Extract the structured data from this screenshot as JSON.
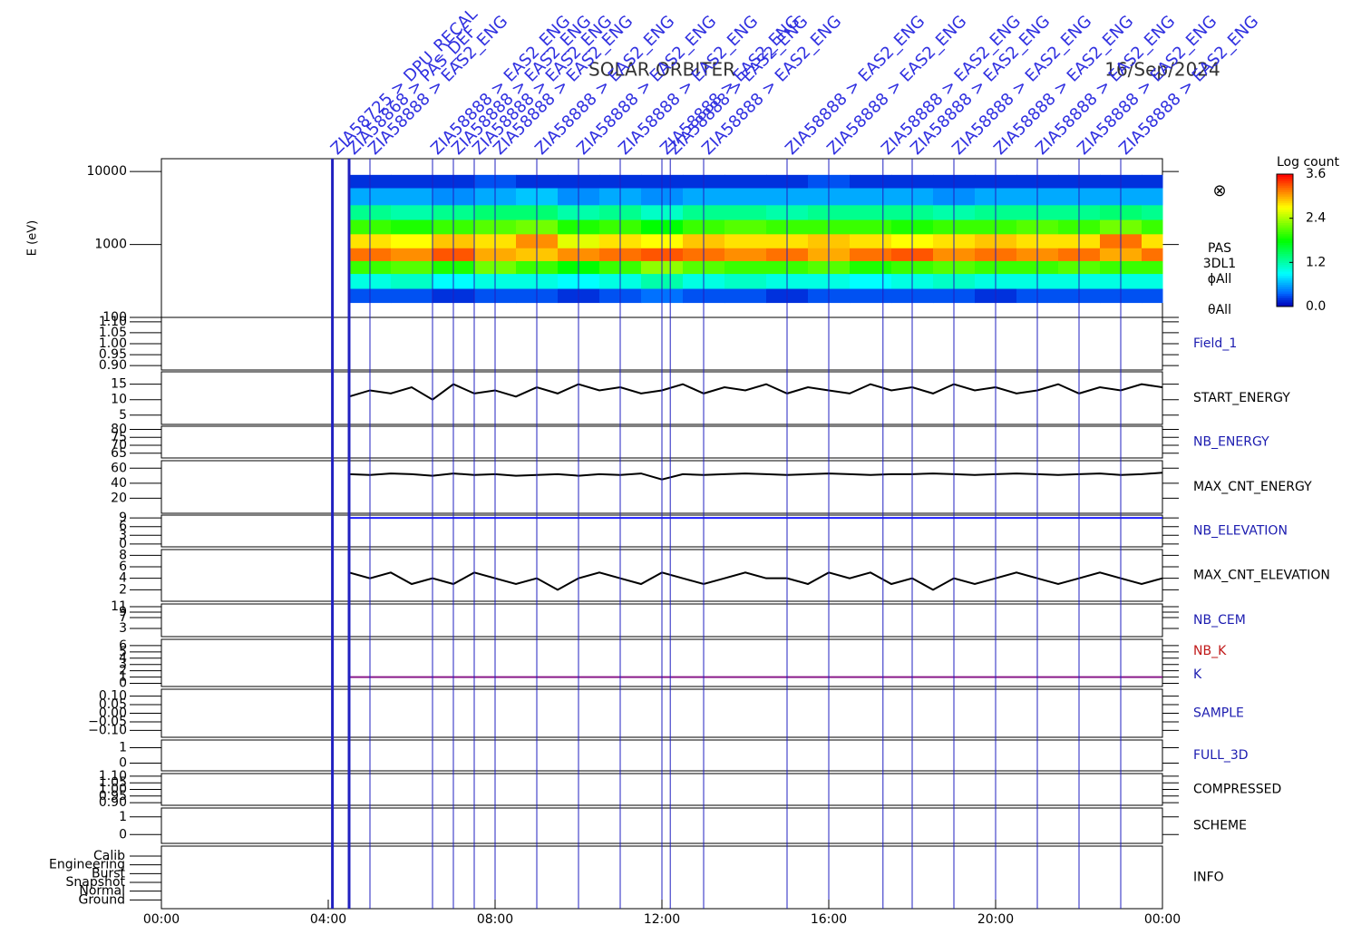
{
  "title": "SOLAR ORBITER",
  "date": "16/Sep/2024",
  "time_axis": {
    "xlim": [
      0,
      24
    ],
    "xticks": [
      {
        "value": 0,
        "label": "00:00"
      },
      {
        "value": 4,
        "label": "04:00"
      },
      {
        "value": 8,
        "label": "08:00"
      },
      {
        "value": 12,
        "label": "12:00"
      },
      {
        "value": 16,
        "label": "16:00"
      },
      {
        "value": 20,
        "label": "20:00"
      },
      {
        "value": 24,
        "label": "00:00"
      }
    ]
  },
  "events": [
    {
      "x": 4.1,
      "label": "ZIA58725 > DPU_RECAL"
    },
    {
      "x": 4.5,
      "label": "ZIA58868 > PAS_DEF"
    },
    {
      "x": 5.0,
      "label": "ZIA58888 > EAS2_ENG"
    },
    {
      "x": 6.5,
      "label": "ZIA58888 > EAS2_ENG"
    },
    {
      "x": 7.0,
      "label": "ZIA58888 > EAS2_ENG"
    },
    {
      "x": 7.5,
      "label": "ZIA58888 > EAS2_ENG"
    },
    {
      "x": 8.0,
      "label": "ZIA58888 > EAS2_ENG"
    },
    {
      "x": 9.0,
      "label": "ZIA58888 > EAS2_ENG"
    },
    {
      "x": 10.0,
      "label": "ZIA58888 > EAS2_ENG"
    },
    {
      "x": 11.0,
      "label": "ZIA58888 > EAS2_ENG"
    },
    {
      "x": 12.0,
      "label": "ZIA58888 > EAS2_ENG"
    },
    {
      "x": 12.2,
      "label": "ZIA58888 > EAS2_ENG"
    },
    {
      "x": 13.0,
      "label": "ZIA58888 > EAS2_ENG"
    },
    {
      "x": 15.0,
      "label": "ZIA58888 > EAS2_ENG"
    },
    {
      "x": 16.0,
      "label": "ZIA58888 > EAS2_ENG"
    },
    {
      "x": 17.3,
      "label": "ZIA58888 > EAS2_ENG"
    },
    {
      "x": 18.0,
      "label": "ZIA58888 > EAS2_ENG"
    },
    {
      "x": 19.0,
      "label": "ZIA58888 > EAS2_ENG"
    },
    {
      "x": 20.0,
      "label": "ZIA58888 > EAS2_ENG"
    },
    {
      "x": 21.0,
      "label": "ZIA58888 > EAS2_ENG"
    },
    {
      "x": 22.0,
      "label": "ZIA58888 > EAS2_ENG"
    },
    {
      "x": 23.0,
      "label": "ZIA58888 > EAS2_ENG"
    }
  ],
  "colorbar": {
    "title": "Log count",
    "lim": [
      0,
      3.6
    ],
    "ticks": [
      {
        "value": 0,
        "label": "0.0"
      },
      {
        "value": 1.2,
        "label": "1.2"
      },
      {
        "value": 2.4,
        "label": "2.4"
      },
      {
        "value": 3.6,
        "label": "3.6"
      }
    ]
  },
  "chart_data": [
    {
      "type": "spectrogram",
      "ylabel": "E (eV)",
      "labels": [
        "PAS",
        "3DL1",
        "ϕAll",
        "θAll"
      ],
      "symbol": "⊗",
      "log": true,
      "ylim": [
        100,
        15000
      ],
      "yticks": [
        100,
        1000,
        10000
      ],
      "xbins": [
        4.5,
        5.5,
        6.5,
        7.5,
        8.5,
        9.5,
        10.5,
        11.5,
        12.5,
        13.5,
        14.5,
        15.5,
        16.5,
        17.5,
        18.5,
        19.5,
        20.5,
        21.5,
        22.5,
        23.5,
        24
      ],
      "ybins": [
        160,
        250,
        400,
        600,
        900,
        1400,
        2200,
        3500,
        6000,
        9000
      ],
      "values": [
        [
          0.3,
          1.0,
          2.0,
          3.2,
          2.8,
          2.0,
          1.3,
          0.6,
          0.2
        ],
        [
          0.3,
          1.1,
          2.1,
          3.1,
          2.7,
          1.9,
          1.2,
          0.6,
          0.2
        ],
        [
          0.2,
          0.9,
          1.9,
          3.3,
          2.9,
          2.0,
          1.3,
          0.5,
          0.2
        ],
        [
          0.3,
          1.0,
          2.2,
          3.0,
          2.8,
          2.1,
          1.4,
          0.6,
          0.3
        ],
        [
          0.3,
          1.0,
          2.0,
          2.9,
          3.1,
          2.2,
          1.4,
          0.7,
          0.2
        ],
        [
          0.2,
          0.9,
          1.8,
          3.1,
          2.6,
          1.9,
          1.2,
          0.5,
          0.2
        ],
        [
          0.3,
          1.0,
          2.0,
          3.2,
          2.8,
          2.0,
          1.3,
          0.6,
          0.2
        ],
        [
          0.4,
          1.2,
          2.3,
          3.3,
          2.7,
          1.8,
          1.1,
          0.5,
          0.2
        ],
        [
          0.3,
          1.0,
          2.1,
          3.2,
          2.9,
          2.0,
          1.3,
          0.6,
          0.2
        ],
        [
          0.3,
          1.1,
          2.0,
          3.1,
          2.8,
          2.1,
          1.3,
          0.6,
          0.2
        ],
        [
          0.2,
          1.0,
          2.0,
          3.2,
          2.8,
          2.0,
          1.2,
          0.6,
          0.2
        ],
        [
          0.3,
          1.0,
          2.1,
          3.0,
          2.9,
          2.0,
          1.3,
          0.6,
          0.3
        ],
        [
          0.3,
          0.9,
          1.9,
          3.2,
          2.8,
          2.0,
          1.3,
          0.6,
          0.2
        ],
        [
          0.3,
          1.0,
          2.0,
          3.3,
          2.7,
          1.9,
          1.3,
          0.6,
          0.2
        ],
        [
          0.3,
          1.1,
          2.1,
          3.1,
          2.8,
          2.0,
          1.2,
          0.5,
          0.2
        ],
        [
          0.2,
          1.0,
          2.0,
          3.2,
          2.9,
          2.0,
          1.3,
          0.6,
          0.2
        ],
        [
          0.3,
          1.0,
          2.0,
          3.1,
          2.8,
          2.1,
          1.3,
          0.6,
          0.2
        ],
        [
          0.3,
          1.0,
          2.1,
          3.2,
          2.8,
          2.0,
          1.3,
          0.6,
          0.2
        ],
        [
          0.3,
          1.0,
          2.0,
          3.0,
          3.2,
          2.2,
          1.4,
          0.6,
          0.2
        ],
        [
          0.3,
          1.0,
          2.0,
          3.2,
          2.8,
          2.0,
          1.3,
          0.6,
          0.2
        ]
      ]
    },
    {
      "type": "empty",
      "labels": [
        "Field_1"
      ],
      "label_colors": [
        "#1c1cb0"
      ],
      "ylim": [
        0.88,
        1.12
      ],
      "yticks": [
        {
          "value": 0.9,
          "label": "0.90"
        },
        0.95,
        {
          "value": 1.0,
          "label": "1.00"
        },
        1.05,
        {
          "value": 1.1,
          "label": "1.10"
        }
      ]
    },
    {
      "type": "line",
      "labels": [
        "START_ENERGY"
      ],
      "label_colors": [
        "#000000"
      ],
      "color": "#000000",
      "ylim": [
        2,
        19
      ],
      "yticks": [
        5,
        10,
        15
      ],
      "x": [
        4.5,
        5,
        5.5,
        6,
        6.5,
        7,
        7.5,
        8,
        8.5,
        9,
        9.5,
        10,
        10.5,
        11,
        11.5,
        12,
        12.5,
        13,
        13.5,
        14,
        14.5,
        15,
        15.5,
        16,
        16.5,
        17,
        17.5,
        18,
        18.5,
        19,
        19.5,
        20,
        20.5,
        21,
        21.5,
        22,
        22.5,
        23,
        23.5,
        24
      ],
      "values": [
        11,
        13,
        12,
        14,
        10,
        15,
        12,
        13,
        11,
        14,
        12,
        15,
        13,
        14,
        12,
        13,
        15,
        12,
        14,
        13,
        15,
        12,
        14,
        13,
        12,
        15,
        13,
        14,
        12,
        15,
        13,
        14,
        12,
        13,
        15,
        12,
        14,
        13,
        15,
        14
      ]
    },
    {
      "type": "empty",
      "labels": [
        "NB_ENERGY"
      ],
      "label_colors": [
        "#1c1cb0"
      ],
      "ylim": [
        62,
        82
      ],
      "yticks": [
        65,
        70,
        75,
        80
      ]
    },
    {
      "type": "line",
      "labels": [
        "MAX_CNT_ENERGY"
      ],
      "label_colors": [
        "#000000"
      ],
      "color": "#000000",
      "ylim": [
        0,
        70
      ],
      "yticks": [
        20,
        40,
        60
      ],
      "x": [
        4.5,
        5,
        5.5,
        6,
        6.5,
        7,
        7.5,
        8,
        8.5,
        9,
        9.5,
        10,
        10.5,
        11,
        11.5,
        12,
        12.5,
        13,
        13.5,
        14,
        14.5,
        15,
        15.5,
        16,
        16.5,
        17,
        17.5,
        18,
        18.5,
        19,
        19.5,
        20,
        20.5,
        21,
        21.5,
        22,
        22.5,
        23,
        23.5,
        24
      ],
      "values": [
        52,
        51,
        53,
        52,
        50,
        53,
        51,
        52,
        50,
        51,
        52,
        50,
        52,
        51,
        53,
        45,
        52,
        51,
        52,
        53,
        52,
        51,
        52,
        53,
        52,
        51,
        52,
        52,
        53,
        52,
        51,
        52,
        53,
        52,
        51,
        52,
        53,
        51,
        52,
        54
      ]
    },
    {
      "type": "line",
      "labels": [
        "NB_ELEVATION"
      ],
      "label_colors": [
        "#1c1cb0"
      ],
      "color": "#1c1cff",
      "ylim": [
        -1,
        10
      ],
      "yticks": [
        0,
        3,
        6,
        9
      ],
      "x": [
        4.5,
        5,
        5.5,
        6,
        6.5,
        7,
        7.5,
        8,
        8.5,
        9,
        9.5,
        10,
        10.5,
        11,
        11.5,
        12,
        12.5,
        13,
        13.5,
        14,
        14.5,
        15,
        15.5,
        16,
        16.5,
        17,
        17.5,
        18,
        18.5,
        19,
        19.5,
        20,
        20.5,
        21,
        21.5,
        22,
        22.5,
        23,
        23.5,
        24
      ],
      "values": [
        9,
        9,
        9,
        9,
        9,
        9,
        9,
        9,
        9,
        9,
        9,
        9,
        9,
        9,
        9,
        9,
        9,
        9,
        9,
        9,
        9,
        9,
        9,
        9,
        9,
        9,
        9,
        9,
        9,
        9,
        9,
        9,
        9,
        9,
        9,
        9,
        9,
        9,
        9,
        9
      ]
    },
    {
      "type": "line",
      "labels": [
        "MAX_CNT_ELEVATION"
      ],
      "label_colors": [
        "#000000"
      ],
      "color": "#000000",
      "ylim": [
        0,
        9
      ],
      "yticks": [
        2,
        4,
        6,
        8
      ],
      "x": [
        4.5,
        5,
        5.5,
        6,
        6.5,
        7,
        7.5,
        8,
        8.5,
        9,
        9.5,
        10,
        10.5,
        11,
        11.5,
        12,
        12.5,
        13,
        13.5,
        14,
        14.5,
        15,
        15.5,
        16,
        16.5,
        17,
        17.5,
        18,
        18.5,
        19,
        19.5,
        20,
        20.5,
        21,
        21.5,
        22,
        22.5,
        23,
        23.5,
        24
      ],
      "values": [
        5,
        4,
        5,
        3,
        4,
        3,
        5,
        4,
        3,
        4,
        2,
        4,
        5,
        4,
        3,
        5,
        4,
        3,
        4,
        5,
        4,
        4,
        3,
        5,
        4,
        5,
        3,
        4,
        2,
        4,
        3,
        4,
        5,
        4,
        3,
        4,
        5,
        4,
        3,
        4
      ]
    },
    {
      "type": "empty",
      "labels": [
        "NB_CEM"
      ],
      "label_colors": [
        "#1c1cb0"
      ],
      "ylim": [
        0,
        12
      ],
      "yticks": [
        3,
        7,
        9,
        11
      ]
    },
    {
      "type": "line",
      "labels": [
        "NB_K",
        "K"
      ],
      "label_colors": [
        "#c01818",
        "#1c1cb0"
      ],
      "color": "#8a1a8a",
      "ylim": [
        -0.5,
        7
      ],
      "yticks": [
        0,
        1,
        2,
        3,
        4,
        5,
        6
      ],
      "x": [
        4.5,
        24
      ],
      "values": [
        1,
        1
      ]
    },
    {
      "type": "empty",
      "labels": [
        "SAMPLE"
      ],
      "label_colors": [
        "#1c1cb0"
      ],
      "ylim": [
        -0.14,
        0.14
      ],
      "yticks": [
        {
          "value": -0.1,
          "label": "−0.10"
        },
        {
          "value": -0.05,
          "label": "−0.05"
        },
        {
          "value": 0,
          "label": "0.00"
        },
        0.05,
        {
          "value": 0.1,
          "label": "0.10"
        }
      ]
    },
    {
      "type": "empty",
      "labels": [
        "FULL_3D"
      ],
      "label_colors": [
        "#1c1cb0"
      ],
      "ylim": [
        -0.5,
        1.5
      ],
      "yticks": [
        0,
        1
      ]
    },
    {
      "type": "empty",
      "labels": [
        "COMPRESSED"
      ],
      "label_colors": [
        "#000000"
      ],
      "ylim": [
        0.88,
        1.12
      ],
      "yticks": [
        {
          "value": 0.9,
          "label": "0.90"
        },
        0.95,
        {
          "value": 1.0,
          "label": "1.00"
        },
        1.05,
        {
          "value": 1.1,
          "label": "1.10"
        }
      ]
    },
    {
      "type": "empty",
      "labels": [
        "SCHEME"
      ],
      "label_colors": [
        "#000000"
      ],
      "ylim": [
        -0.5,
        1.5
      ],
      "yticks": [
        0,
        1
      ]
    },
    {
      "type": "category",
      "labels": [
        "INFO"
      ],
      "label_colors": [
        "#000000"
      ],
      "categories": [
        "Calib",
        "Engineering",
        "Burst",
        "Snapshot",
        "Normal",
        "Ground"
      ]
    }
  ]
}
